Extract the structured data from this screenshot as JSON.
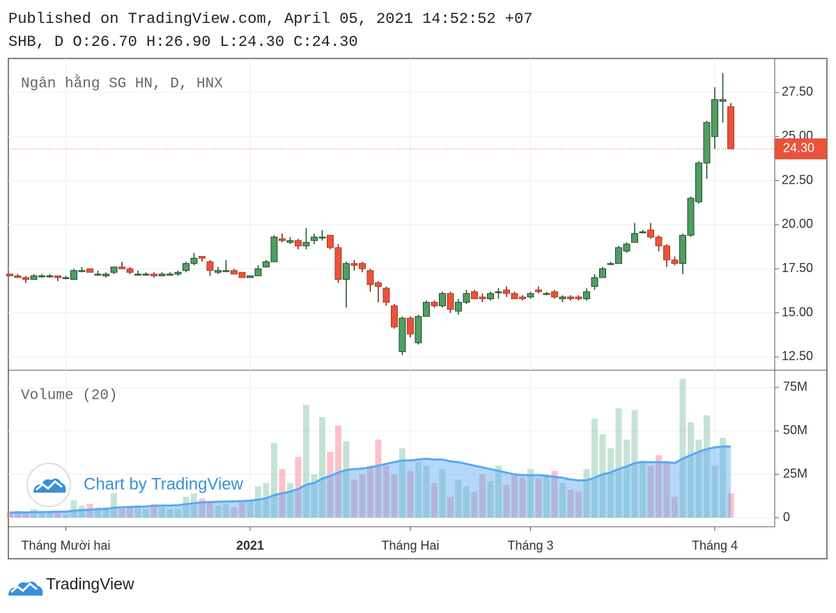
{
  "header": {
    "published": "Published on TradingView.com, April 05, 2021 14:52:52 +07",
    "quote": "SHB, D O:26.70 H:26.90 L:24.30 C:24.30"
  },
  "chart_data": {
    "type": "candlestick",
    "title": "Ngân hằng SG HN, D, HNX",
    "volume_title": "Volume (20)",
    "watermark": "Chart by TradingView",
    "categories": [
      null,
      null,
      null,
      null,
      null,
      null,
      null,
      "Tháng Mười hai",
      null,
      null,
      null,
      null,
      null,
      null,
      null,
      null,
      null,
      null,
      null,
      null,
      null,
      null,
      null,
      null,
      null,
      null,
      null,
      null,
      null,
      null,
      "2021",
      null,
      null,
      null,
      null,
      null,
      null,
      null,
      null,
      null,
      null,
      null,
      null,
      null,
      null,
      null,
      null,
      null,
      null,
      null,
      "Tháng Hai",
      null,
      null,
      null,
      null,
      null,
      null,
      null,
      null,
      null,
      null,
      null,
      null,
      null,
      null,
      "Tháng 3",
      null,
      null,
      null,
      null,
      null,
      null,
      null,
      null,
      null,
      null,
      null,
      null,
      null,
      null,
      null,
      null,
      null,
      null,
      null,
      null,
      null,
      null,
      "Tháng 4",
      null,
      null
    ],
    "open": [
      17.2,
      17.1,
      17.0,
      16.9,
      17.1,
      17.1,
      17.1,
      17.0,
      16.9,
      17.4,
      17.5,
      17.2,
      17.1,
      17.3,
      17.6,
      17.5,
      17.2,
      17.2,
      17.2,
      17.1,
      17.2,
      17.2,
      17.4,
      17.8,
      18.2,
      17.9,
      17.3,
      17.4,
      17.4,
      17.3,
      17.0,
      17.1,
      17.6,
      17.9,
      19.2,
      19.0,
      19.1,
      18.8,
      19.1,
      19.3,
      19.4,
      18.7,
      16.9,
      17.8,
      17.8,
      17.4,
      16.7,
      16.4,
      15.4,
      12.8,
      14.7,
      13.3,
      14.8,
      15.6,
      15.4,
      16.1,
      15.1,
      15.6,
      16.2,
      15.9,
      15.8,
      16.2,
      16.3,
      16.1,
      15.9,
      15.9,
      16.3,
      16.1,
      16.2,
      15.8,
      15.9,
      15.9,
      15.8,
      16.5,
      17.0,
      17.8,
      17.8,
      18.5,
      19.0,
      19.6,
      19.7,
      19.3,
      18.8,
      18.0,
      17.8,
      19.4,
      21.3,
      23.5,
      25.0,
      27.0,
      26.7
    ],
    "high": [
      17.2,
      17.2,
      17.1,
      17.2,
      17.2,
      17.2,
      17.1,
      17.1,
      17.5,
      17.6,
      17.5,
      17.4,
      17.3,
      17.6,
      17.9,
      17.6,
      17.4,
      17.3,
      17.3,
      17.3,
      17.3,
      17.4,
      17.9,
      18.4,
      18.2,
      18.0,
      17.6,
      18.0,
      17.5,
      17.3,
      17.1,
      17.7,
      18.0,
      19.4,
      19.5,
      19.3,
      19.2,
      19.8,
      19.5,
      19.7,
      19.4,
      18.9,
      17.9,
      18.0,
      17.9,
      17.5,
      16.8,
      16.5,
      15.5,
      14.8,
      14.8,
      14.9,
      15.7,
      15.7,
      16.2,
      16.2,
      15.8,
      16.3,
      16.3,
      16.1,
      16.2,
      16.4,
      16.5,
      16.2,
      16.0,
      16.2,
      16.5,
      16.2,
      16.3,
      16.0,
      16.0,
      16.0,
      16.4,
      17.2,
      17.6,
      17.9,
      18.8,
      19.0,
      20.1,
      19.7,
      20.1,
      19.4,
      18.9,
      18.2,
      19.5,
      21.6,
      23.6,
      25.9,
      27.8,
      28.6,
      26.9
    ],
    "low": [
      17.1,
      17.0,
      16.7,
      16.9,
      17.0,
      17.0,
      16.8,
      16.9,
      16.9,
      17.3,
      17.3,
      17.1,
      17.0,
      17.2,
      17.5,
      17.2,
      17.1,
      17.1,
      17.0,
      17.1,
      17.1,
      17.1,
      17.3,
      17.7,
      17.9,
      17.1,
      17.2,
      17.3,
      17.2,
      17.0,
      17.0,
      17.1,
      17.6,
      17.9,
      19.0,
      18.9,
      18.6,
      18.6,
      18.9,
      19.1,
      18.6,
      16.7,
      15.3,
      17.4,
      17.3,
      16.2,
      15.6,
      15.4,
      14.1,
      12.6,
      13.6,
      13.2,
      14.8,
      15.3,
      15.3,
      15.0,
      14.9,
      15.5,
      15.8,
      15.6,
      15.7,
      15.8,
      15.9,
      15.8,
      15.7,
      15.8,
      16.1,
      16.0,
      15.8,
      15.6,
      15.7,
      15.7,
      15.7,
      16.3,
      17.0,
      17.7,
      17.8,
      18.4,
      19.0,
      19.5,
      19.2,
      18.5,
      17.6,
      17.7,
      17.2,
      19.3,
      21.2,
      22.6,
      24.3,
      25.8,
      24.3
    ],
    "close": [
      17.1,
      17.0,
      16.9,
      17.1,
      17.1,
      17.1,
      17.0,
      17.0,
      17.4,
      17.4,
      17.3,
      17.2,
      17.2,
      17.6,
      17.5,
      17.3,
      17.2,
      17.2,
      17.1,
      17.2,
      17.2,
      17.3,
      17.8,
      18.1,
      18.1,
      17.4,
      17.4,
      17.4,
      17.2,
      17.0,
      17.1,
      17.5,
      17.9,
      19.3,
      19.1,
      19.1,
      18.8,
      19.0,
      19.3,
      19.3,
      18.7,
      16.9,
      17.8,
      17.7,
      17.5,
      16.6,
      16.5,
      15.6,
      14.2,
      14.7,
      13.8,
      14.8,
      15.6,
      15.4,
      16.1,
      15.2,
      15.6,
      16.1,
      15.8,
      15.8,
      16.1,
      16.2,
      16.1,
      15.8,
      15.8,
      16.1,
      16.2,
      16.1,
      15.9,
      15.9,
      15.8,
      15.8,
      16.2,
      17.0,
      17.5,
      17.8,
      18.7,
      18.9,
      19.5,
      19.6,
      19.3,
      18.8,
      18.0,
      17.8,
      19.4,
      21.5,
      23.5,
      25.8,
      27.1,
      27.1,
      24.3
    ],
    "volume": [
      3000000.0,
      4000000.0,
      3000000.0,
      5000000.0,
      3000000.0,
      3000000.0,
      4000000.0,
      2000000.0,
      10000000.0,
      7000000.0,
      8000000.0,
      6000000.0,
      6000000.0,
      14000000.0,
      5000000.0,
      6000000.0,
      7000000.0,
      5000000.0,
      8000000.0,
      6000000.0,
      5000000.0,
      5000000.0,
      12000000.0,
      14000000.0,
      11000000.0,
      9000000.0,
      7000000.0,
      8000000.0,
      6000000.0,
      9000000.0,
      10000000.0,
      18000000.0,
      20000000.0,
      43000000.0,
      28000000.0,
      20000000.0,
      35000000.0,
      65000000.0,
      25000000.0,
      58000000.0,
      38000000.0,
      53000000.0,
      44000000.0,
      22000000.0,
      25000000.0,
      30000000.0,
      45000000.0,
      30000000.0,
      25000000.0,
      40000000.0,
      27000000.0,
      32000000.0,
      30000000.0,
      20000000.0,
      28000000.0,
      12000000.0,
      22000000.0,
      18000000.0,
      15000000.0,
      25000000.0,
      21000000.0,
      30000000.0,
      19000000.0,
      25000000.0,
      23000000.0,
      28000000.0,
      23000000.0,
      25000000.0,
      27000000.0,
      20000000.0,
      16000000.0,
      15000000.0,
      28000000.0,
      57000000.0,
      48000000.0,
      40000000.0,
      63000000.0,
      45000000.0,
      62000000.0,
      33000000.0,
      30000000.0,
      36000000.0,
      32000000.0,
      12000000.0,
      80000000.0,
      55000000.0,
      45000000.0,
      59000000.0,
      30000000.0,
      46000000.0,
      14000000.0
    ],
    "volume_ma": [
      3000000.0,
      3000000.0,
      3000000.0,
      3200000.0,
      3200000.0,
      3300000.0,
      3400000.0,
      3400000.0,
      4000000.0,
      4300000.0,
      4600000.0,
      4800000.0,
      5000000.0,
      5800000.0,
      6000000.0,
      6200000.0,
      6400000.0,
      6500000.0,
      6800000.0,
      7000000.0,
      7000000.0,
      7200000.0,
      7800000.0,
      8400000.0,
      8800000.0,
      9000000.0,
      9200000.0,
      9300000.0,
      9400000.0,
      9600000.0,
      9800000.0,
      10400000.0,
      11200000.0,
      13000000.0,
      14000000.0,
      15000000.0,
      16500000.0,
      19000000.0,
      20000000.0,
      22500000.0,
      24000000.0,
      26000000.0,
      27500000.0,
      28000000.0,
      28300000.0,
      29000000.0,
      30000000.0,
      31000000.0,
      32000000.0,
      33000000.0,
      33000000.0,
      33500000.0,
      34000000.0,
      33500000.0,
      33500000.0,
      32500000.0,
      32000000.0,
      31000000.0,
      30000000.0,
      29000000.0,
      28000000.0,
      27000000.0,
      26000000.0,
      25000000.0,
      24500000.0,
      24500000.0,
      24500000.0,
      24000000.0,
      23500000.0,
      23000000.0,
      22000000.0,
      21500000.0,
      21500000.0,
      23000000.0,
      25000000.0,
      26000000.0,
      28000000.0,
      29500000.0,
      31500000.0,
      32000000.0,
      32000000.0,
      32000000.0,
      32000000.0,
      31500000.0,
      34000000.0,
      36000000.0,
      38000000.0,
      39500000.0,
      40500000.0,
      41000000.0,
      41000000.0
    ],
    "ylim": [
      11.75,
      29.43
    ],
    "yticks": [
      {
        "value": 12.5,
        "label": "12.50"
      },
      {
        "value": 15,
        "label": "15.00"
      },
      {
        "value": 17.5,
        "label": "17.50"
      },
      {
        "value": 20,
        "label": "20.00"
      },
      {
        "value": 22.5,
        "label": "22.50"
      },
      {
        "value": 25,
        "label": "25.00"
      },
      {
        "value": 27.5,
        "label": "27.50"
      }
    ],
    "last_price": {
      "value": 24.3,
      "label": "24.30"
    },
    "volume_ylim": [
      -5200000.0,
      85000000.0
    ],
    "volume_yticks": [
      0,
      {
        "value": 25000000.0,
        "label": "25M"
      },
      {
        "value": 50000000.0,
        "label": "50M"
      },
      {
        "value": 75000000.0,
        "label": "75M"
      }
    ],
    "up_color": "#4f9e62",
    "down_color": "#e8533a",
    "volume_up_color": "rgba(110,185,150,0.4)",
    "volume_down_color": "rgba(245,120,135,0.45)",
    "ma_color": "#5aa8f2",
    "grid": true
  },
  "footer": {
    "brand": "TradingView"
  }
}
